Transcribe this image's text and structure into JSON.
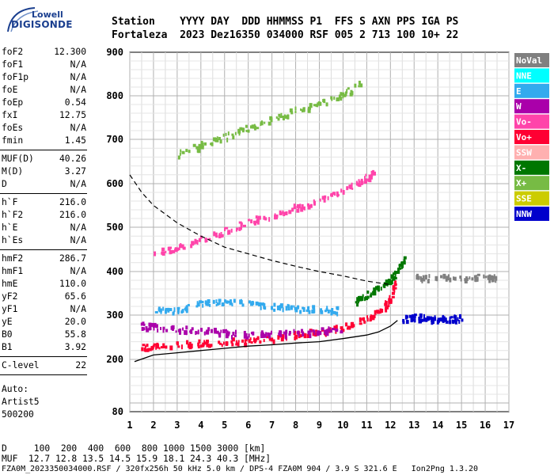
{
  "logo": {
    "top": "Lowell",
    "main": "DIGISONDE"
  },
  "header": {
    "fields": [
      "Station",
      "YYYY",
      "DAY",
      "DDD",
      "HHMMSS",
      "P1",
      "FFS",
      "S",
      "AXN",
      "PPS",
      "IGA",
      "PS"
    ],
    "values": [
      "Fortaleza",
      "2023",
      "Dez16",
      "350",
      "034000",
      "RSF",
      "005",
      "2",
      "713",
      "100",
      "10+",
      "22"
    ]
  },
  "params": {
    "group1": [
      {
        "label": "foF2",
        "value": "12.300"
      },
      {
        "label": "foF1",
        "value": "N/A"
      },
      {
        "label": "foF1p",
        "value": "N/A"
      },
      {
        "label": "foE",
        "value": "N/A"
      },
      {
        "label": "foEp",
        "value": "0.54"
      },
      {
        "label": "fxI",
        "value": "12.75"
      },
      {
        "label": "foEs",
        "value": "N/A"
      },
      {
        "label": "fmin",
        "value": "1.45"
      }
    ],
    "group2": [
      {
        "label": "MUF(D)",
        "value": "40.26"
      },
      {
        "label": "M(D)",
        "value": "3.27"
      },
      {
        "label": "D",
        "value": "N/A"
      }
    ],
    "group3": [
      {
        "label": "h`F",
        "value": "216.0"
      },
      {
        "label": "h`F2",
        "value": "216.0"
      },
      {
        "label": "h`E",
        "value": "N/A"
      },
      {
        "label": "h`Es",
        "value": "N/A"
      }
    ],
    "group4": [
      {
        "label": "hmF2",
        "value": "286.7"
      },
      {
        "label": "hmF1",
        "value": "N/A"
      },
      {
        "label": "hmE",
        "value": "110.0"
      },
      {
        "label": "yF2",
        "value": "65.6"
      },
      {
        "label": "yF1",
        "value": "N/A"
      },
      {
        "label": "yE",
        "value": "20.0"
      },
      {
        "label": "B0",
        "value": "55.8"
      },
      {
        "label": "B1",
        "value": "3.92"
      }
    ],
    "group5": [
      {
        "label": "C-level",
        "value": "22"
      }
    ]
  },
  "misc": {
    "line1": "Auto:",
    "line2": "Artist5",
    "line3": "500200"
  },
  "footer": {
    "distance_row": "D     100  200  400  600  800 1000 1500 3000 [km]",
    "muf_row": "MUF  12.7 12.8 13.5 14.5 15.9 18.1 24.3 40.3 [MHz]",
    "file_row": "FZA0M_2023350034000.RSF / 320fx256h 50 kHz 5.0 km / DPS-4 FZA0M 904 / 3.9 S 321.6 E   Ion2Png 1.3.20"
  },
  "legend": [
    {
      "label": "NoVal",
      "color": "#808080"
    },
    {
      "label": "NNE",
      "color": "#00ffff"
    },
    {
      "label": "E",
      "color": "#33aaee"
    },
    {
      "label": "W",
      "color": "#aa00aa"
    },
    {
      "label": "Vo-",
      "color": "#ff44aa"
    },
    {
      "label": "Vo+",
      "color": "#ff0033"
    },
    {
      "label": "SSW",
      "color": "#ffb0b0"
    },
    {
      "label": "X-",
      "color": "#007700"
    },
    {
      "label": "X+",
      "color": "#77bb44"
    },
    {
      "label": "SSE",
      "color": "#cccc00"
    },
    {
      "label": "NNW",
      "color": "#0000cc"
    }
  ],
  "chart_data": {
    "type": "scatter",
    "xlim": [
      1,
      17
    ],
    "ylim": [
      80,
      900
    ],
    "x_ticks": [
      "1",
      "2",
      "3",
      "4",
      "5",
      "6",
      "7",
      "8",
      "9",
      "10",
      "11",
      "12",
      "13",
      "14",
      "15",
      "16",
      "17"
    ],
    "y_ticks": [
      "80",
      "200",
      "300",
      "400",
      "500",
      "600",
      "700",
      "800",
      "900"
    ],
    "grid": true,
    "legend_position": "right",
    "series": [
      {
        "name": "Vo+",
        "color": "#ff0033",
        "points": [
          [
            1.5,
            225
          ],
          [
            2,
            228
          ],
          [
            3,
            232
          ],
          [
            4,
            235
          ],
          [
            5,
            238
          ],
          [
            6,
            242
          ],
          [
            7,
            248
          ],
          [
            8,
            255
          ],
          [
            9,
            262
          ],
          [
            10,
            272
          ],
          [
            11,
            290
          ],
          [
            11.5,
            305
          ],
          [
            12,
            335
          ],
          [
            12.2,
            370
          ]
        ]
      },
      {
        "name": "Vo-",
        "color": "#ff44aa",
        "points": [
          [
            1.9,
            440
          ],
          [
            3,
            452
          ],
          [
            4,
            470
          ],
          [
            5,
            490
          ],
          [
            6,
            510
          ],
          [
            7,
            528
          ],
          [
            8,
            545
          ],
          [
            9,
            560
          ],
          [
            10,
            582
          ],
          [
            10.8,
            605
          ],
          [
            11.3,
            625
          ]
        ]
      },
      {
        "name": "W",
        "color": "#aa00aa",
        "points": [
          [
            1.5,
            275
          ],
          [
            2,
            272
          ],
          [
            3,
            268
          ],
          [
            4,
            265
          ],
          [
            5,
            258
          ],
          [
            6,
            255
          ],
          [
            7,
            257
          ],
          [
            8,
            258
          ],
          [
            9,
            262
          ],
          [
            10,
            268
          ]
        ]
      },
      {
        "name": "E",
        "color": "#33aaee",
        "points": [
          [
            2,
            310
          ],
          [
            3,
            310
          ],
          [
            4,
            325
          ],
          [
            5,
            330
          ],
          [
            6,
            325
          ],
          [
            7,
            318
          ],
          [
            8,
            315
          ],
          [
            9,
            312
          ],
          [
            10,
            310
          ]
        ]
      },
      {
        "name": "X-",
        "color": "#007700",
        "points": [
          [
            10.5,
            330
          ],
          [
            11,
            345
          ],
          [
            11.5,
            360
          ],
          [
            12,
            380
          ],
          [
            12.3,
            400
          ],
          [
            12.6,
            430
          ]
        ]
      },
      {
        "name": "X+",
        "color": "#77bb44",
        "points": [
          [
            3,
            665
          ],
          [
            4,
            685
          ],
          [
            5,
            705
          ],
          [
            6,
            725
          ],
          [
            7,
            745
          ],
          [
            8,
            765
          ],
          [
            9,
            780
          ],
          [
            10,
            800
          ],
          [
            10.8,
            830
          ]
        ]
      },
      {
        "name": "NNW",
        "color": "#0000cc",
        "points": [
          [
            12.5,
            290
          ],
          [
            13,
            295
          ],
          [
            13.5,
            292
          ],
          [
            14,
            290
          ],
          [
            14.5,
            290
          ],
          [
            15,
            292
          ]
        ]
      },
      {
        "name": "NoVal",
        "color": "#808080",
        "points": [
          [
            13,
            385
          ],
          [
            14,
            385
          ],
          [
            15,
            385
          ],
          [
            16,
            388
          ],
          [
            16.5,
            385
          ]
        ]
      }
    ],
    "profile_line": {
      "points": [
        [
          1.2,
          195
        ],
        [
          2,
          210
        ],
        [
          3,
          215
        ],
        [
          4,
          220
        ],
        [
          5,
          225
        ],
        [
          6,
          230
        ],
        [
          7,
          233
        ],
        [
          8,
          237
        ],
        [
          9,
          240
        ],
        [
          10,
          247
        ],
        [
          11,
          255
        ],
        [
          11.5,
          262
        ],
        [
          12,
          275
        ],
        [
          12.3,
          288
        ]
      ]
    },
    "dashed_curve": {
      "points": [
        [
          1,
          620
        ],
        [
          1.5,
          580
        ],
        [
          2,
          550
        ],
        [
          3,
          510
        ],
        [
          4,
          480
        ],
        [
          5,
          455
        ],
        [
          6,
          440
        ],
        [
          7,
          425
        ],
        [
          8,
          412
        ],
        [
          9,
          400
        ],
        [
          10,
          390
        ],
        [
          11,
          378
        ],
        [
          12,
          370
        ]
      ]
    }
  }
}
